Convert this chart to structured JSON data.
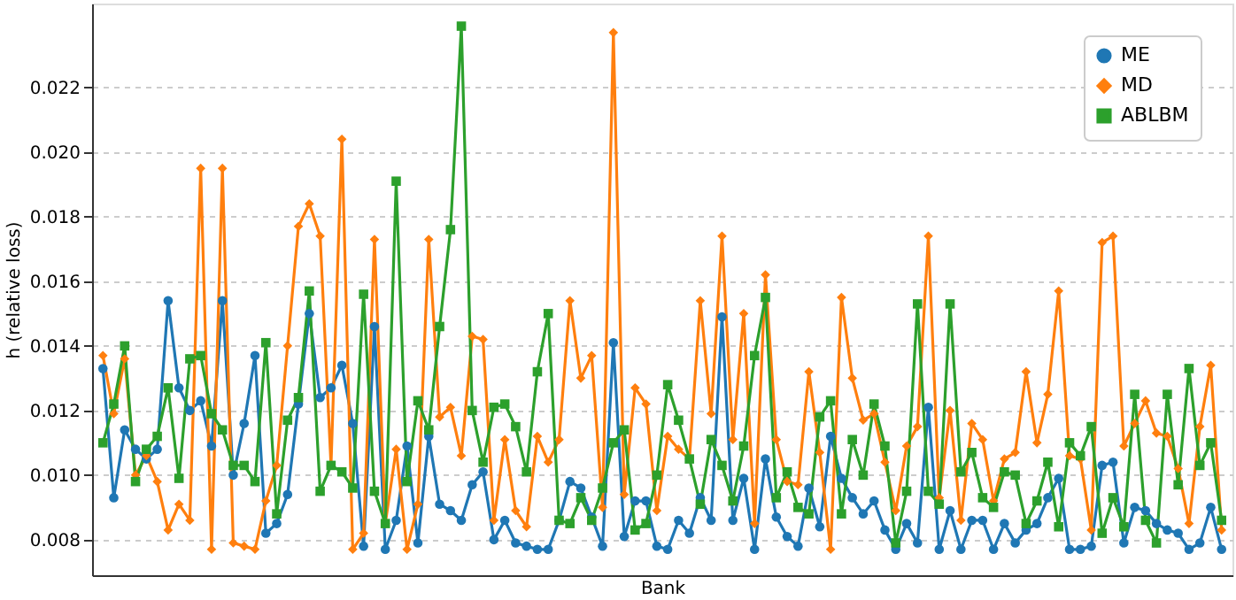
{
  "chart_data": {
    "type": "line",
    "xlabel": "Bank",
    "ylabel": "h (relative loss)",
    "categories": [
      null,
      null,
      null,
      null,
      null,
      null,
      null,
      null,
      null,
      null,
      null,
      null,
      null,
      null,
      null,
      null,
      null,
      null,
      null,
      null,
      null,
      null,
      null,
      null,
      null,
      null,
      null,
      null,
      null,
      null,
      null,
      null,
      null,
      null,
      null,
      null,
      null,
      null,
      null,
      null,
      null,
      null,
      null,
      null,
      null,
      null,
      null,
      null,
      null,
      null,
      null,
      null,
      null,
      null,
      null,
      null,
      null,
      null,
      null,
      null,
      null,
      null,
      null,
      null,
      null,
      null,
      null,
      null,
      null,
      null,
      null,
      null,
      null,
      null,
      null,
      null,
      null,
      null,
      null,
      null,
      null,
      null,
      null,
      null,
      null,
      null,
      null,
      null,
      null,
      null,
      null,
      null,
      null,
      null,
      null,
      null,
      null,
      null,
      null,
      null,
      null,
      null,
      null,
      null
    ],
    "series": [
      {
        "name": "ME",
        "color": "#1f77b4",
        "marker": "circle",
        "values": [
          0.0133,
          0.0093,
          0.0114,
          0.0108,
          0.0105,
          0.0108,
          0.0154,
          0.0127,
          0.012,
          0.0123,
          0.0109,
          0.0154,
          0.01,
          0.0116,
          0.0137,
          0.0082,
          0.0085,
          0.0094,
          0.0122,
          0.015,
          0.0124,
          0.0127,
          0.0134,
          0.0116,
          0.0078,
          0.0146,
          0.0077,
          0.0086,
          0.0109,
          0.0079,
          0.0112,
          0.0091,
          0.0089,
          0.0086,
          0.0097,
          0.0101,
          0.008,
          0.0086,
          0.0079,
          0.0078,
          0.0077,
          0.0077,
          0.0086,
          0.0098,
          0.0096,
          0.0087,
          0.0078,
          0.0141,
          0.0081,
          0.0092,
          0.0092,
          0.0078,
          0.0077,
          0.0086,
          0.0082,
          0.0093,
          0.0086,
          0.0149,
          0.0086,
          0.0099,
          0.0077,
          0.0105,
          0.0087,
          0.0081,
          0.0078,
          0.0096,
          0.0084,
          0.0112,
          0.0099,
          0.0093,
          0.0088,
          0.0092,
          0.0083,
          0.0077,
          0.0085,
          0.0079,
          0.0121,
          0.0077,
          0.0089,
          0.0077,
          0.0086,
          0.0086,
          0.0077,
          0.0085,
          0.0079,
          0.0083,
          0.0085,
          0.0093,
          0.0099,
          0.0077,
          0.0077,
          0.0078,
          0.0103,
          0.0104,
          0.0079,
          0.009,
          0.0089,
          0.0085,
          0.0083,
          0.0082,
          0.0077,
          0.0079,
          0.009,
          0.0077
        ]
      },
      {
        "name": "MD",
        "color": "#ff7f0e",
        "marker": "diamond",
        "values": [
          0.0137,
          0.0119,
          0.0136,
          0.01,
          0.0106,
          0.0098,
          0.0083,
          0.0091,
          0.0086,
          0.0195,
          0.0077,
          0.0195,
          0.0079,
          0.0078,
          0.0077,
          0.0092,
          0.0103,
          0.014,
          0.0177,
          0.0184,
          0.0174,
          0.0103,
          0.0204,
          0.0077,
          0.0082,
          0.0173,
          0.0085,
          0.0108,
          0.0077,
          0.0091,
          0.0173,
          0.0118,
          0.0121,
          0.0106,
          0.0143,
          0.0142,
          0.0086,
          0.0111,
          0.0089,
          0.0084,
          0.0112,
          0.0104,
          0.0111,
          0.0154,
          0.013,
          0.0137,
          0.009,
          0.0237,
          0.0094,
          0.0127,
          0.0122,
          0.0089,
          0.0112,
          0.0108,
          0.0105,
          0.0154,
          0.0119,
          0.0174,
          0.0111,
          0.015,
          0.0085,
          0.0162,
          0.0111,
          0.0098,
          0.0097,
          0.0132,
          0.0107,
          0.0077,
          0.0155,
          0.013,
          0.0117,
          0.0119,
          0.0104,
          0.0089,
          0.0109,
          0.0115,
          0.0174,
          0.0093,
          0.012,
          0.0086,
          0.0116,
          0.0111,
          0.0092,
          0.0105,
          0.0107,
          0.0132,
          0.011,
          0.0125,
          0.0157,
          0.0106,
          0.0105,
          0.0083,
          0.0172,
          0.0174,
          0.0109,
          0.0116,
          0.0123,
          0.0113,
          0.0112,
          0.0102,
          0.0085,
          0.0115,
          0.0134,
          0.0083
        ]
      },
      {
        "name": "ABLBM",
        "color": "#2ca02c",
        "marker": "square",
        "values": [
          0.011,
          0.0122,
          0.014,
          0.0098,
          0.0108,
          0.0112,
          0.0127,
          0.0099,
          0.0136,
          0.0137,
          0.0119,
          0.0114,
          0.0103,
          0.0103,
          0.0098,
          0.0141,
          0.0088,
          0.0117,
          0.0124,
          0.0157,
          0.0095,
          0.0103,
          0.0101,
          0.0096,
          0.0156,
          0.0095,
          0.0085,
          0.0191,
          0.0098,
          0.0123,
          0.0114,
          0.0146,
          0.0176,
          0.0239,
          0.012,
          0.0104,
          0.0121,
          0.0122,
          0.0115,
          0.0101,
          0.0132,
          0.015,
          0.0086,
          0.0085,
          0.0093,
          0.0086,
          0.0096,
          0.011,
          0.0114,
          0.0083,
          0.0085,
          0.01,
          0.0128,
          0.0117,
          0.0105,
          0.0091,
          0.0111,
          0.0103,
          0.0092,
          0.0109,
          0.0137,
          0.0155,
          0.0093,
          0.0101,
          0.009,
          0.0088,
          0.0118,
          0.0123,
          0.0088,
          0.0111,
          0.01,
          0.0122,
          0.0109,
          0.0079,
          0.0095,
          0.0153,
          0.0095,
          0.0091,
          0.0153,
          0.0101,
          0.0107,
          0.0093,
          0.009,
          0.0101,
          0.01,
          0.0085,
          0.0092,
          0.0104,
          0.0084,
          0.011,
          0.0106,
          0.0115,
          0.0082,
          0.0093,
          0.0084,
          0.0125,
          0.0086,
          0.0079,
          0.0125,
          0.0097,
          0.0133,
          0.0103,
          0.011,
          0.0086
        ]
      }
    ],
    "ylim": [
      0.0069,
      0.0246
    ],
    "yticks": [
      0.008,
      {
        "value": 0.01,
        "label": "0.010"
      },
      0.012,
      0.014,
      0.016,
      0.018,
      {
        "value": 0.02,
        "label": "0.020"
      },
      0.022
    ],
    "tick_labels": "y",
    "grid": "y",
    "legend": "top right",
    "line_style": "solid"
  }
}
